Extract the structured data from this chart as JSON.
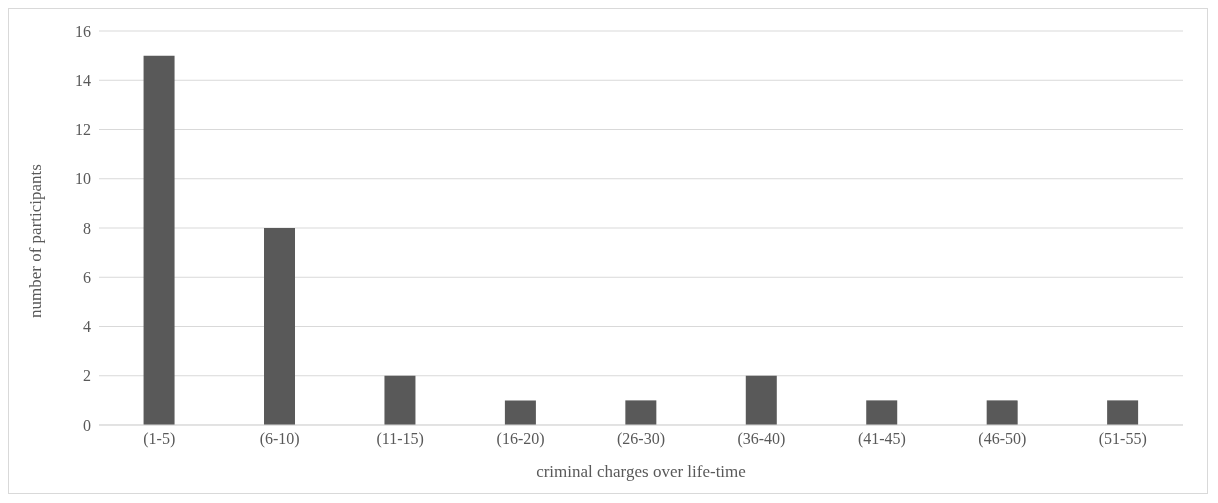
{
  "chart_data": {
    "type": "bar",
    "xlabel": "criminal charges over life-time",
    "ylabel": "number of participants",
    "categories": [
      "(1-5)",
      "(6-10)",
      "(11-15)",
      "(16-20)",
      "(26-30)",
      "(36-40)",
      "(41-45)",
      "(46-50)",
      "(51-55)"
    ],
    "values": [
      15,
      8,
      2,
      1,
      1,
      2,
      1,
      1,
      1
    ],
    "color": "#595959",
    "ylim": [
      0,
      16
    ],
    "yticks": [
      0,
      2,
      4,
      6,
      8,
      10,
      12,
      14,
      16
    ],
    "grid": "y"
  }
}
